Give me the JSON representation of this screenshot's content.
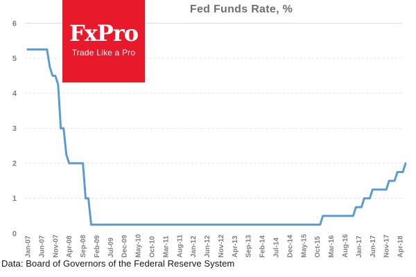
{
  "header": {
    "title": "Fed Funds Rate, %"
  },
  "logo": {
    "name": "FxPro",
    "tagline": "Trade Like a Pro",
    "bg_color": "#e8192b",
    "text_color": "#ffffff"
  },
  "footer": {
    "source": "Data: Board of Governors of the Federal Reserve System"
  },
  "colors": {
    "line": "#5b9bd5",
    "grid_dashed": "#e3e3e3",
    "grid_top_solid": "#d8dde3",
    "axis_text": "#7f7f7f",
    "title_text": "#6e6e6e"
  },
  "chart_data": {
    "type": "line",
    "title": "Fed Funds Rate, %",
    "xlabel": "",
    "ylabel": "",
    "ylim": [
      0,
      6
    ],
    "yticks": [
      0,
      1,
      2,
      3,
      4,
      5,
      6
    ],
    "grid": {
      "horizontal": true,
      "style": "dashed",
      "top_line_solid": true
    },
    "legend": "none",
    "frequency": "monthly",
    "start_month": "Jan-07",
    "end_month": "Jun-18",
    "x_tick_every_months": 5,
    "x_tick_labels": [
      "Jan-07",
      "Jun-07",
      "Nov-07",
      "Apr-08",
      "Sep-08",
      "Feb-09",
      "Jul-09",
      "Dec-09",
      "May-10",
      "Oct-10",
      "Mar-11",
      "Aug-11",
      "Jan-12",
      "Jun-12",
      "Nov-12",
      "Apr-13",
      "Sep-13",
      "Feb-14",
      "Jul-14",
      "Dec-14",
      "May-15",
      "Oct-15",
      "Mar-16",
      "Aug-16",
      "Jan-17",
      "Jun-17",
      "Nov-17",
      "Apr-18"
    ],
    "series": [
      {
        "name": "Fed Funds Rate",
        "color": "#5b9bd5",
        "values": [
          5.25,
          5.25,
          5.25,
          5.25,
          5.25,
          5.25,
          5.25,
          5.25,
          4.75,
          4.5,
          4.5,
          4.25,
          3.0,
          3.0,
          2.25,
          2.0,
          2.0,
          2.0,
          2.0,
          2.0,
          2.0,
          1.0,
          1.0,
          0.25,
          0.25,
          0.25,
          0.25,
          0.25,
          0.25,
          0.25,
          0.25,
          0.25,
          0.25,
          0.25,
          0.25,
          0.25,
          0.25,
          0.25,
          0.25,
          0.25,
          0.25,
          0.25,
          0.25,
          0.25,
          0.25,
          0.25,
          0.25,
          0.25,
          0.25,
          0.25,
          0.25,
          0.25,
          0.25,
          0.25,
          0.25,
          0.25,
          0.25,
          0.25,
          0.25,
          0.25,
          0.25,
          0.25,
          0.25,
          0.25,
          0.25,
          0.25,
          0.25,
          0.25,
          0.25,
          0.25,
          0.25,
          0.25,
          0.25,
          0.25,
          0.25,
          0.25,
          0.25,
          0.25,
          0.25,
          0.25,
          0.25,
          0.25,
          0.25,
          0.25,
          0.25,
          0.25,
          0.25,
          0.25,
          0.25,
          0.25,
          0.25,
          0.25,
          0.25,
          0.25,
          0.25,
          0.25,
          0.25,
          0.25,
          0.25,
          0.25,
          0.25,
          0.25,
          0.25,
          0.25,
          0.25,
          0.25,
          0.25,
          0.5,
          0.5,
          0.5,
          0.5,
          0.5,
          0.5,
          0.5,
          0.5,
          0.5,
          0.5,
          0.5,
          0.5,
          0.75,
          0.75,
          0.75,
          1.0,
          1.0,
          1.0,
          1.25,
          1.25,
          1.25,
          1.25,
          1.25,
          1.25,
          1.5,
          1.5,
          1.5,
          1.75,
          1.75,
          1.75,
          2.0
        ]
      }
    ]
  }
}
